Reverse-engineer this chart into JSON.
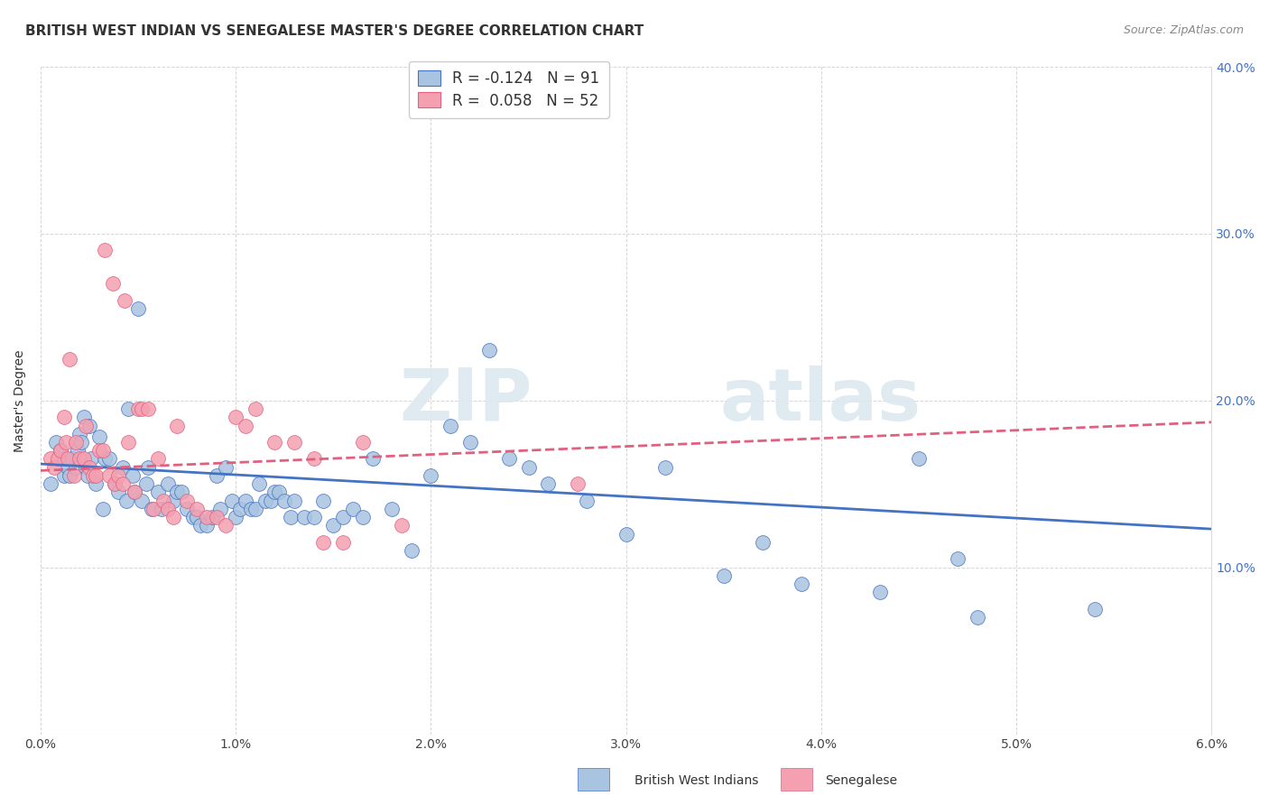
{
  "title": "BRITISH WEST INDIAN VS SENEGALESE MASTER'S DEGREE CORRELATION CHART",
  "source": "Source: ZipAtlas.com",
  "ylabel": "Master's Degree",
  "legend_label1": "British West Indians",
  "legend_label2": "Senegalese",
  "R1": "-0.124",
  "N1": "91",
  "R2": "0.058",
  "N2": "52",
  "color_blue": "#a8c4e0",
  "color_pink": "#f4a0b0",
  "line_color_blue": "#4472c4",
  "line_color_pink": "#e06080",
  "watermark_zip": "ZIP",
  "watermark_atlas": "atlas",
  "xlim": [
    0.0,
    6.0
  ],
  "ylim": [
    0.0,
    40.0
  ],
  "blue_x": [
    0.05,
    0.08,
    0.1,
    0.12,
    0.12,
    0.14,
    0.15,
    0.16,
    0.18,
    0.19,
    0.2,
    0.21,
    0.22,
    0.23,
    0.24,
    0.25,
    0.26,
    0.28,
    0.3,
    0.32,
    0.33,
    0.35,
    0.38,
    0.4,
    0.42,
    0.44,
    0.45,
    0.47,
    0.48,
    0.5,
    0.52,
    0.54,
    0.55,
    0.57,
    0.6,
    0.62,
    0.65,
    0.68,
    0.7,
    0.72,
    0.75,
    0.78,
    0.8,
    0.82,
    0.85,
    0.88,
    0.9,
    0.92,
    0.95,
    0.98,
    1.0,
    1.02,
    1.05,
    1.08,
    1.1,
    1.12,
    1.15,
    1.18,
    1.2,
    1.22,
    1.25,
    1.28,
    1.3,
    1.35,
    1.4,
    1.45,
    1.5,
    1.55,
    1.6,
    1.65,
    1.7,
    1.8,
    1.9,
    2.0,
    2.1,
    2.2,
    2.3,
    2.4,
    2.5,
    2.6,
    2.8,
    3.0,
    3.2,
    3.5,
    3.7,
    3.9,
    4.3,
    4.5,
    4.7,
    4.8,
    5.4
  ],
  "blue_y": [
    15.0,
    17.5,
    17.0,
    16.5,
    15.5,
    16.0,
    15.5,
    16.5,
    16.0,
    17.0,
    18.0,
    17.5,
    19.0,
    16.0,
    15.5,
    18.5,
    16.5,
    15.0,
    17.8,
    13.5,
    16.5,
    16.5,
    15.0,
    14.5,
    16.0,
    14.0,
    19.5,
    15.5,
    14.5,
    25.5,
    14.0,
    15.0,
    16.0,
    13.5,
    14.5,
    13.5,
    15.0,
    14.0,
    14.5,
    14.5,
    13.5,
    13.0,
    13.0,
    12.5,
    12.5,
    13.0,
    15.5,
    13.5,
    16.0,
    14.0,
    13.0,
    13.5,
    14.0,
    13.5,
    13.5,
    15.0,
    14.0,
    14.0,
    14.5,
    14.5,
    14.0,
    13.0,
    14.0,
    13.0,
    13.0,
    14.0,
    12.5,
    13.0,
    13.5,
    13.0,
    16.5,
    13.5,
    11.0,
    15.5,
    18.5,
    17.5,
    23.0,
    16.5,
    16.0,
    15.0,
    14.0,
    12.0,
    16.0,
    9.5,
    11.5,
    9.0,
    8.5,
    16.5,
    10.5,
    7.0,
    7.5
  ],
  "pink_x": [
    0.05,
    0.07,
    0.09,
    0.1,
    0.12,
    0.13,
    0.14,
    0.15,
    0.17,
    0.18,
    0.2,
    0.22,
    0.23,
    0.25,
    0.27,
    0.28,
    0.3,
    0.32,
    0.33,
    0.35,
    0.37,
    0.38,
    0.4,
    0.42,
    0.43,
    0.45,
    0.48,
    0.5,
    0.52,
    0.55,
    0.58,
    0.6,
    0.63,
    0.65,
    0.68,
    0.7,
    0.75,
    0.8,
    0.85,
    0.9,
    0.95,
    1.0,
    1.05,
    1.1,
    1.2,
    1.3,
    1.4,
    1.45,
    1.55,
    1.65,
    1.85,
    2.75
  ],
  "pink_y": [
    16.5,
    16.0,
    16.5,
    17.0,
    19.0,
    17.5,
    16.5,
    22.5,
    15.5,
    17.5,
    16.5,
    16.5,
    18.5,
    16.0,
    15.5,
    15.5,
    17.0,
    17.0,
    29.0,
    15.5,
    27.0,
    15.0,
    15.5,
    15.0,
    26.0,
    17.5,
    14.5,
    19.5,
    19.5,
    19.5,
    13.5,
    16.5,
    14.0,
    13.5,
    13.0,
    18.5,
    14.0,
    13.5,
    13.0,
    13.0,
    12.5,
    19.0,
    18.5,
    19.5,
    17.5,
    17.5,
    16.5,
    11.5,
    11.5,
    17.5,
    12.5,
    15.0
  ],
  "blue_trend_x": [
    0.0,
    6.0
  ],
  "blue_trend_y": [
    16.2,
    12.3
  ],
  "pink_trend_x": [
    0.0,
    6.0
  ],
  "pink_trend_y": [
    15.8,
    18.7
  ],
  "background_color": "#ffffff",
  "grid_color": "#cccccc",
  "title_fontsize": 11,
  "axis_label_fontsize": 10,
  "tick_fontsize": 10,
  "legend_fontsize": 12
}
